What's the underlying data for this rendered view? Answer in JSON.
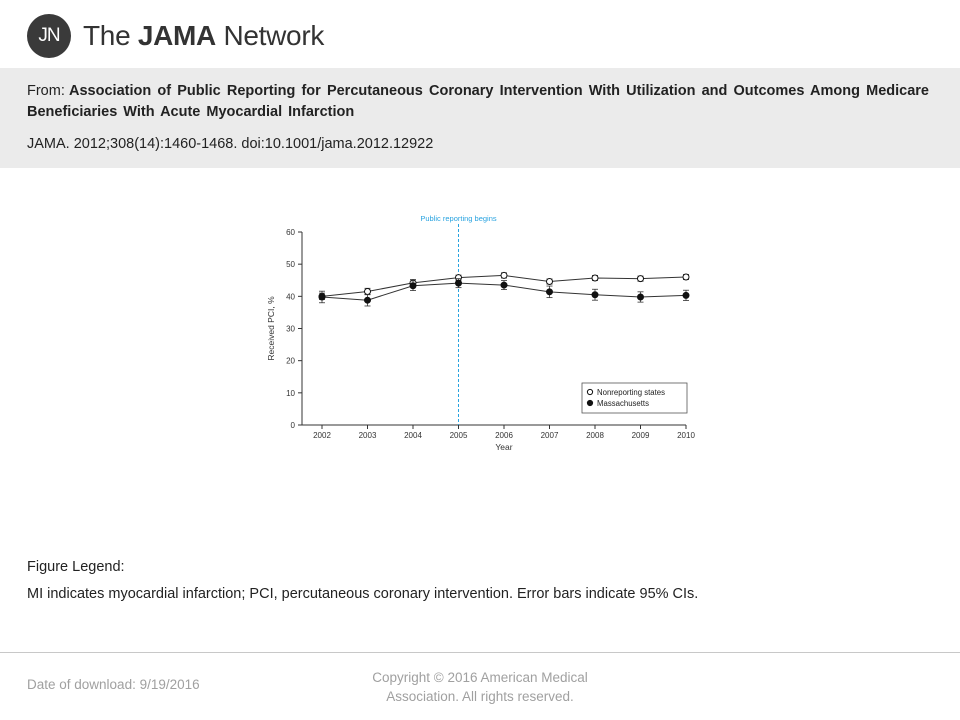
{
  "header": {
    "logo_initials": "JN",
    "logo_prefix": "The ",
    "logo_bold": "JAMA",
    "logo_suffix": " Network",
    "from_label": "From:",
    "article_title": "Association  of Public Reporting for Percutaneous  Coronary Intervention With Utilization and Outcomes Among Medicare Beneficiaries With Acute Myocardial Infarction",
    "citation": "JAMA. 2012;308(14):1460-1468. doi:10.1001/jama.2012.12922"
  },
  "chart_data": {
    "type": "line",
    "x": [
      2002,
      2003,
      2004,
      2005,
      2006,
      2007,
      2008,
      2009,
      2010
    ],
    "xlabel": "Year",
    "ylabel": "Received PCI, %",
    "ylim": [
      0,
      60
    ],
    "yticks": [
      0,
      10,
      20,
      30,
      40,
      50,
      60
    ],
    "annotation": {
      "x": 2005,
      "label": "Public reporting begins",
      "color": "#29a3e0"
    },
    "series": [
      {
        "name": "Nonreporting states",
        "marker": "open",
        "values": [
          40.0,
          41.5,
          44.2,
          45.8,
          46.5,
          44.6,
          45.7,
          45.5,
          46.0
        ],
        "ci_halfwidth": [
          1.0,
          1.0,
          1.0,
          0.8,
          0.8,
          0.8,
          0.8,
          0.8,
          0.8
        ]
      },
      {
        "name": "Massachusetts",
        "marker": "filled",
        "values": [
          39.8,
          38.8,
          43.3,
          44.1,
          43.5,
          41.4,
          40.5,
          39.8,
          40.3
        ],
        "ci_halfwidth": [
          1.8,
          1.8,
          1.5,
          1.4,
          1.4,
          1.8,
          1.7,
          1.6,
          1.6
        ]
      }
    ],
    "legend_position": "bottom-right",
    "grid": false
  },
  "legend": {
    "title": "Figure Legend:",
    "text": "MI indicates myocardial infarction; PCI, percutaneous coronary intervention. Error bars indicate 95% CIs."
  },
  "footer": {
    "download": "Date of download:  9/19/2016",
    "copyright": "Copyright © 2016 American Medical Association. All rights reserved."
  }
}
